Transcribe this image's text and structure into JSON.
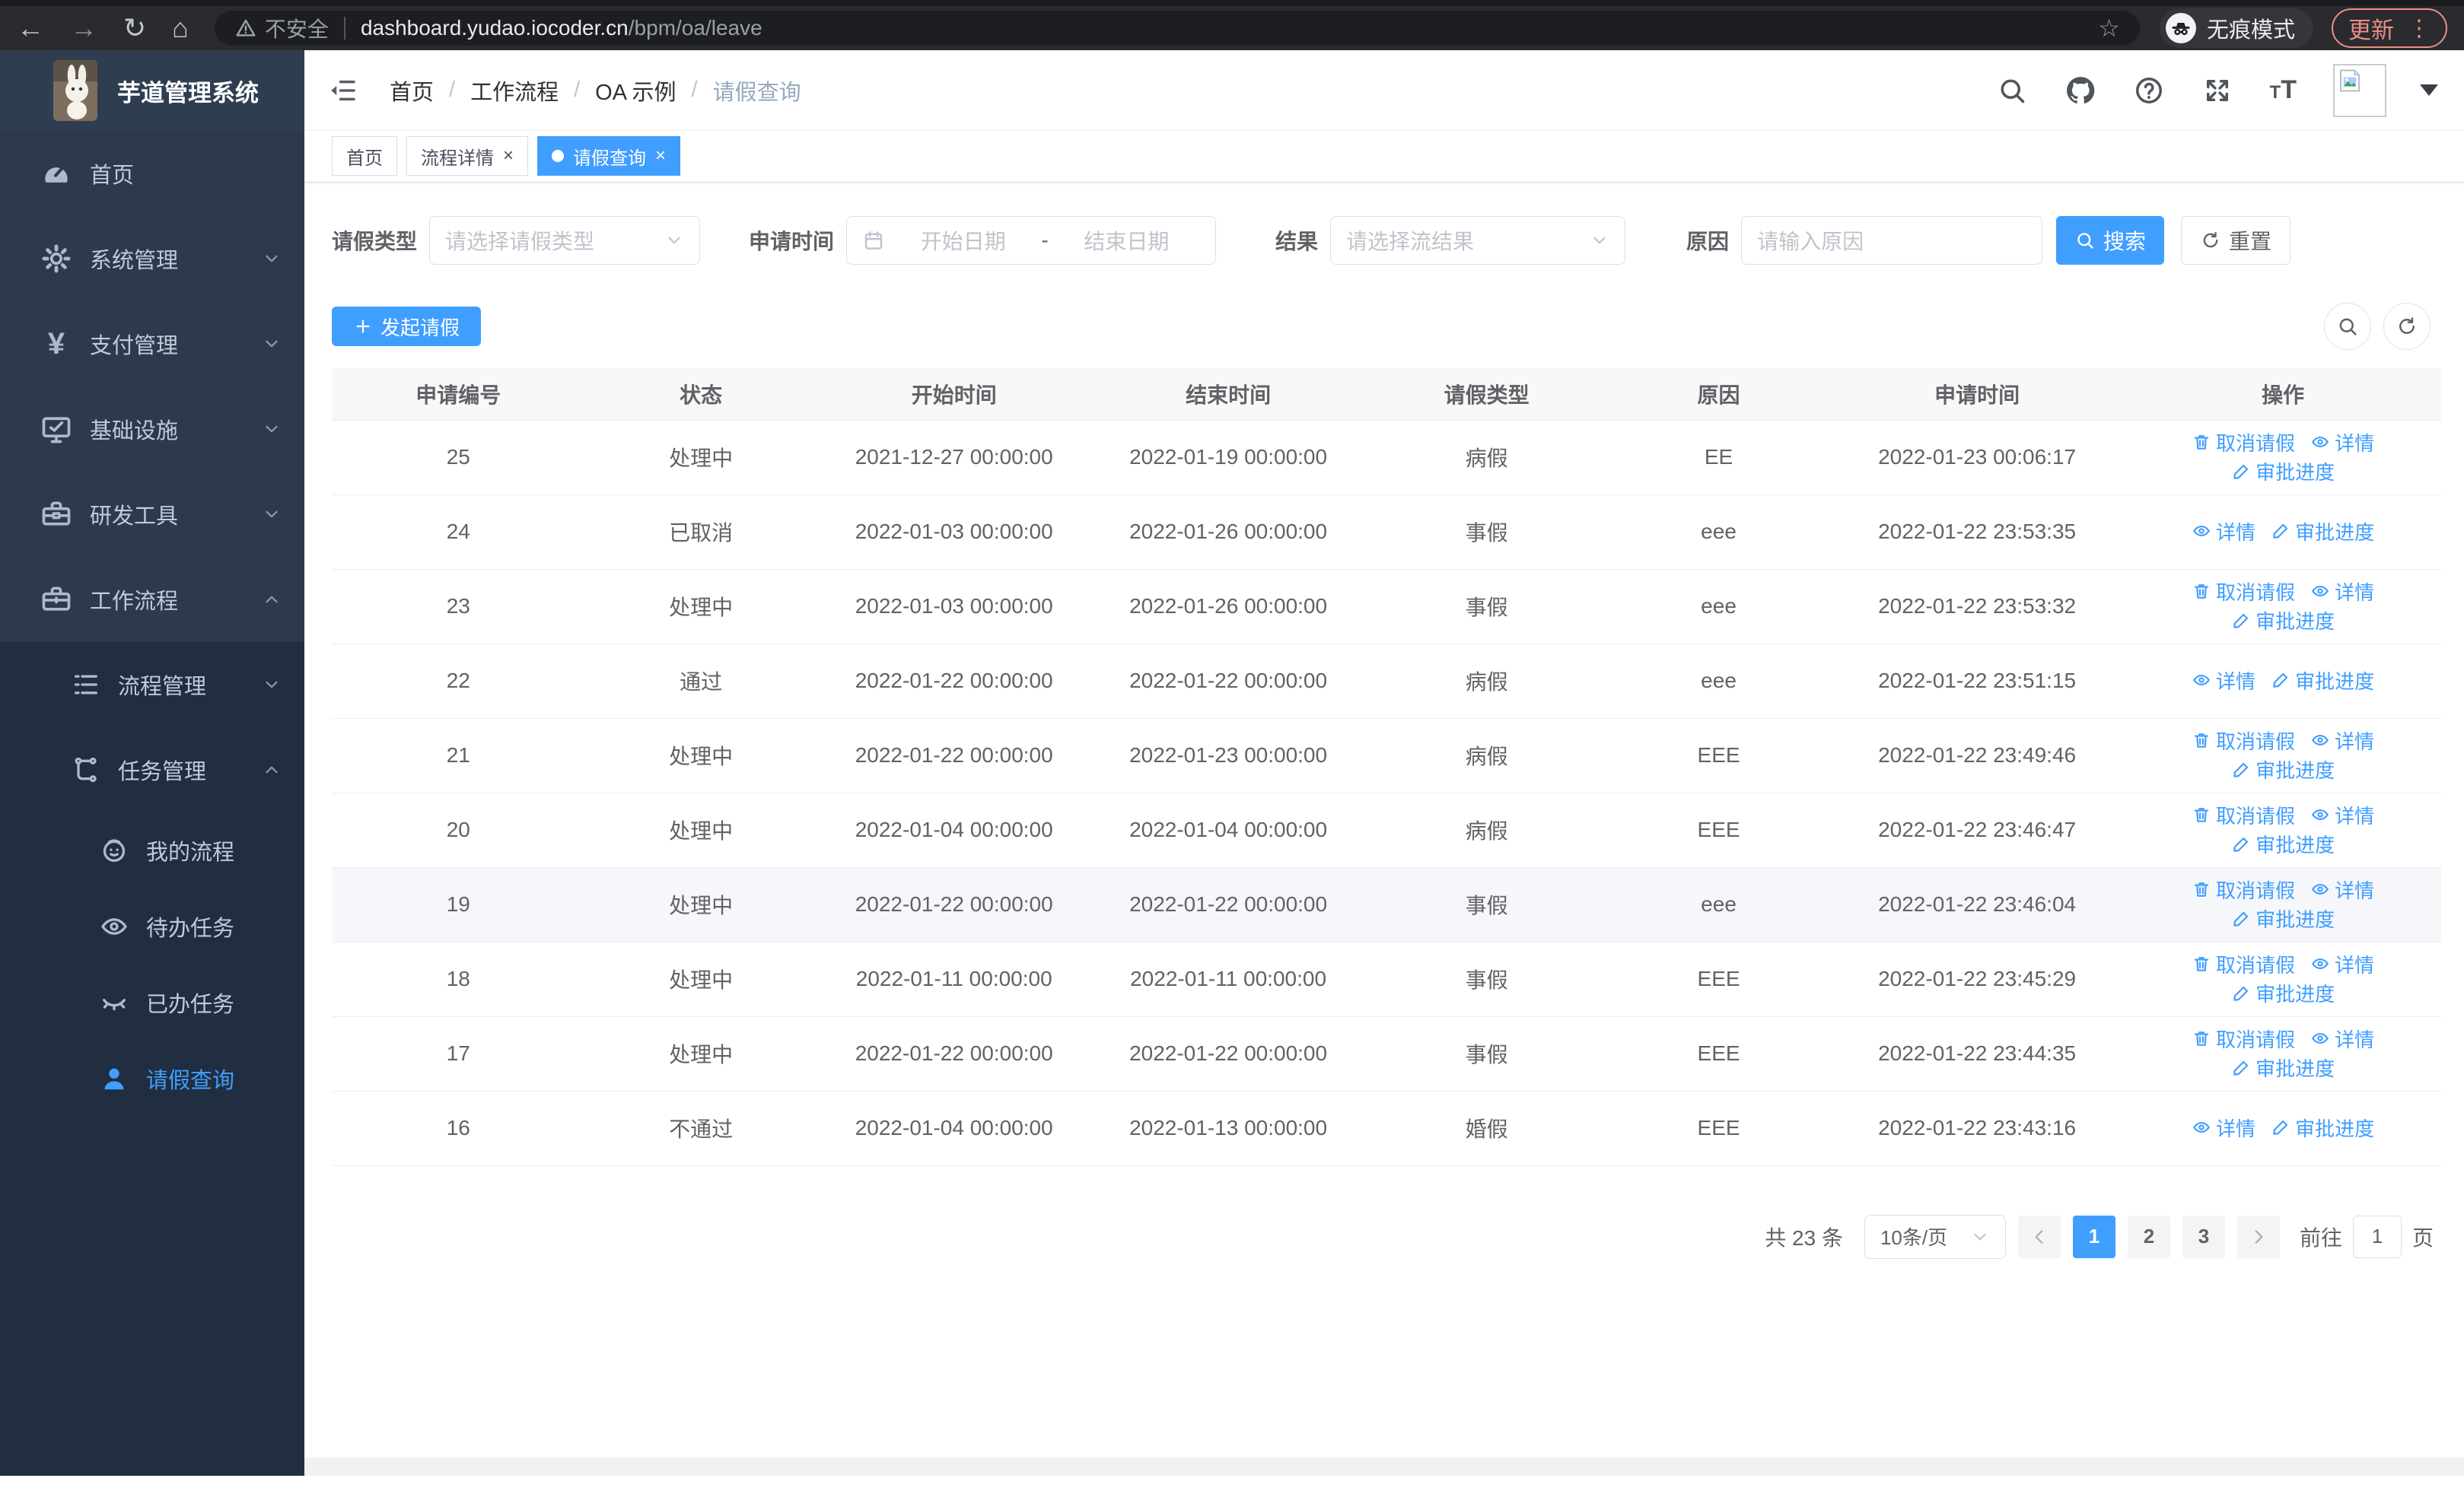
{
  "colors": {
    "accent": "#409eff",
    "sidebar_bg": "#2d3a4d",
    "submenu_bg": "#212d40",
    "update_red": "#eb8e86"
  },
  "browser": {
    "security_label": "不安全",
    "url_host": "dashboard.yudao.iocoder.cn",
    "url_path": "/bpm/oa/leave",
    "incognito_label": "无痕模式",
    "update_label": "更新"
  },
  "app": {
    "title": "芋道管理系统",
    "breadcrumb": [
      "首页",
      "工作流程",
      "OA 示例",
      "请假查询"
    ],
    "tabs": [
      {
        "label": "首页",
        "closable": false,
        "active": false
      },
      {
        "label": "流程详情",
        "closable": true,
        "active": false
      },
      {
        "label": "请假查询",
        "closable": true,
        "active": true
      }
    ]
  },
  "sidebar": {
    "items": [
      {
        "label": "首页",
        "icon": "dashboard-icon",
        "chevron": ""
      },
      {
        "label": "系统管理",
        "icon": "gear-icon",
        "chevron": "down"
      },
      {
        "label": "支付管理",
        "icon": "yen-icon",
        "chevron": "down"
      },
      {
        "label": "基础设施",
        "icon": "monitor-icon",
        "chevron": "down"
      },
      {
        "label": "研发工具",
        "icon": "toolbox-icon",
        "chevron": "down"
      },
      {
        "label": "工作流程",
        "icon": "briefcase-icon",
        "chevron": "up"
      }
    ],
    "submenu": [
      {
        "label": "流程管理",
        "icon": "list-icon",
        "chevron": "down",
        "children": []
      },
      {
        "label": "任务管理",
        "icon": "tree-icon",
        "chevron": "up",
        "children": [
          {
            "label": "我的流程",
            "icon": "face-icon",
            "active": false
          },
          {
            "label": "待办任务",
            "icon": "eye-open-icon",
            "active": false
          },
          {
            "label": "已办任务",
            "icon": "eye-closed-icon",
            "active": false
          },
          {
            "label": "请假查询",
            "icon": "user-icon",
            "active": true
          }
        ]
      }
    ]
  },
  "filters": {
    "leave_type_label": "请假类型",
    "leave_type_placeholder": "请选择请假类型",
    "apply_time_label": "申请时间",
    "date_start_placeholder": "开始日期",
    "date_separator": "-",
    "date_end_placeholder": "结束日期",
    "result_label": "结果",
    "result_placeholder": "请选择流结果",
    "reason_label": "原因",
    "reason_placeholder": "请输入原因",
    "search_label": "搜索",
    "reset_label": "重置"
  },
  "toolbar": {
    "create_label": "发起请假"
  },
  "table": {
    "headers": [
      "申请编号",
      "状态",
      "开始时间",
      "结束时间",
      "请假类型",
      "原因",
      "申请时间",
      "操作"
    ],
    "action_labels": {
      "cancel": "取消请假",
      "detail": "详情",
      "progress": "审批进度"
    },
    "rows": [
      {
        "id": "25",
        "status": "处理中",
        "start": "2021-12-27 00:00:00",
        "end": "2022-01-19 00:00:00",
        "type": "病假",
        "reason": "EE",
        "applied": "2022-01-23 00:06:17",
        "cancelable": true,
        "highlight": false
      },
      {
        "id": "24",
        "status": "已取消",
        "start": "2022-01-03 00:00:00",
        "end": "2022-01-26 00:00:00",
        "type": "事假",
        "reason": "eee",
        "applied": "2022-01-22 23:53:35",
        "cancelable": false,
        "highlight": false
      },
      {
        "id": "23",
        "status": "处理中",
        "start": "2022-01-03 00:00:00",
        "end": "2022-01-26 00:00:00",
        "type": "事假",
        "reason": "eee",
        "applied": "2022-01-22 23:53:32",
        "cancelable": true,
        "highlight": false
      },
      {
        "id": "22",
        "status": "通过",
        "start": "2022-01-22 00:00:00",
        "end": "2022-01-22 00:00:00",
        "type": "病假",
        "reason": "eee",
        "applied": "2022-01-22 23:51:15",
        "cancelable": false,
        "highlight": false
      },
      {
        "id": "21",
        "status": "处理中",
        "start": "2022-01-22 00:00:00",
        "end": "2022-01-23 00:00:00",
        "type": "病假",
        "reason": "EEE",
        "applied": "2022-01-22 23:49:46",
        "cancelable": true,
        "highlight": false
      },
      {
        "id": "20",
        "status": "处理中",
        "start": "2022-01-04 00:00:00",
        "end": "2022-01-04 00:00:00",
        "type": "病假",
        "reason": "EEE",
        "applied": "2022-01-22 23:46:47",
        "cancelable": true,
        "highlight": false
      },
      {
        "id": "19",
        "status": "处理中",
        "start": "2022-01-22 00:00:00",
        "end": "2022-01-22 00:00:00",
        "type": "事假",
        "reason": "eee",
        "applied": "2022-01-22 23:46:04",
        "cancelable": true,
        "highlight": true
      },
      {
        "id": "18",
        "status": "处理中",
        "start": "2022-01-11 00:00:00",
        "end": "2022-01-11 00:00:00",
        "type": "事假",
        "reason": "EEE",
        "applied": "2022-01-22 23:45:29",
        "cancelable": true,
        "highlight": false
      },
      {
        "id": "17",
        "status": "处理中",
        "start": "2022-01-22 00:00:00",
        "end": "2022-01-22 00:00:00",
        "type": "事假",
        "reason": "EEE",
        "applied": "2022-01-22 23:44:35",
        "cancelable": true,
        "highlight": false
      },
      {
        "id": "16",
        "status": "不通过",
        "start": "2022-01-04 00:00:00",
        "end": "2022-01-13 00:00:00",
        "type": "婚假",
        "reason": "EEE",
        "applied": "2022-01-22 23:43:16",
        "cancelable": false,
        "highlight": false
      }
    ]
  },
  "pagination": {
    "total_label": "共 23 条",
    "page_size": "10条/页",
    "pages": [
      "1",
      "2",
      "3"
    ],
    "active_page": "1",
    "goto_label": "前往",
    "goto_value": "1",
    "page_suffix": "页"
  }
}
